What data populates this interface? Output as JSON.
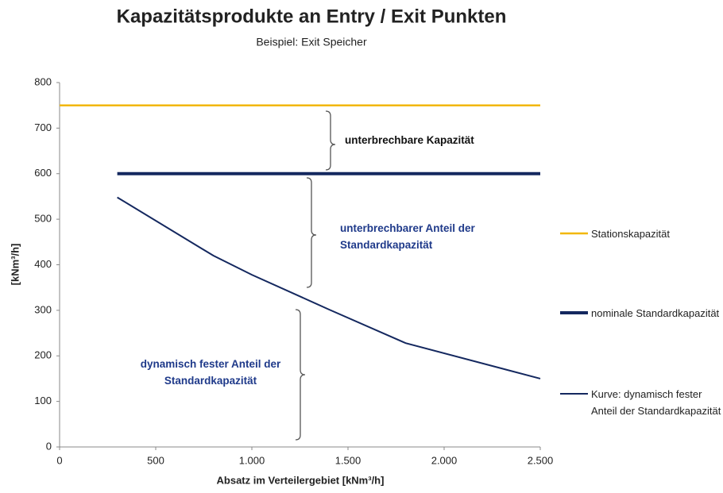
{
  "chart_data": {
    "type": "line",
    "title": "Kapazitätsprodukte an Entry / Exit Punkten",
    "subtitle": "Beispiel: Exit Speicher",
    "x_label": "Absatz im Verteilergebiet [kNm³/h]",
    "y_label": "[kNm³/h]",
    "xlim": [
      0,
      2500
    ],
    "ylim": [
      0,
      800
    ],
    "xticks": [
      0,
      500,
      {
        "value": 1000,
        "label": "1.000"
      },
      {
        "value": 1500,
        "label": "1.500"
      },
      {
        "value": 2000,
        "label": "2.000"
      },
      {
        "value": 2500,
        "label": "2.500"
      }
    ],
    "yticks": [
      0,
      100,
      200,
      300,
      400,
      500,
      600,
      700,
      800
    ],
    "grid": false,
    "legend": "right",
    "series": [
      {
        "name": "Stationskapazität",
        "color": "#f2b705",
        "width": 2.5,
        "x": [
          0,
          2500
        ],
        "values": [
          750,
          750
        ]
      },
      {
        "name": "nominale Standardkapazität",
        "color": "#14285f",
        "width": 4,
        "x": [
          300,
          2500
        ],
        "values": [
          600,
          600
        ]
      },
      {
        "name": "Kurve: dynamisch fester Anteil der Standardkapazität",
        "color": "#14285f",
        "width": 2,
        "x": [
          300,
          800,
          1000,
          1400,
          1800,
          2500
        ],
        "values": [
          548,
          420,
          378,
          302,
          228,
          150
        ]
      }
    ],
    "annotations": [
      {
        "text": "unterbrechbare Kapazität",
        "color": "#111111"
      },
      {
        "text": "unterbrechbarer Anteil der Standardkapazität",
        "color": "#1f3a8a"
      },
      {
        "text": "dynamisch fester Anteil der Standardkapazität",
        "color": "#1f3a8a"
      }
    ]
  }
}
